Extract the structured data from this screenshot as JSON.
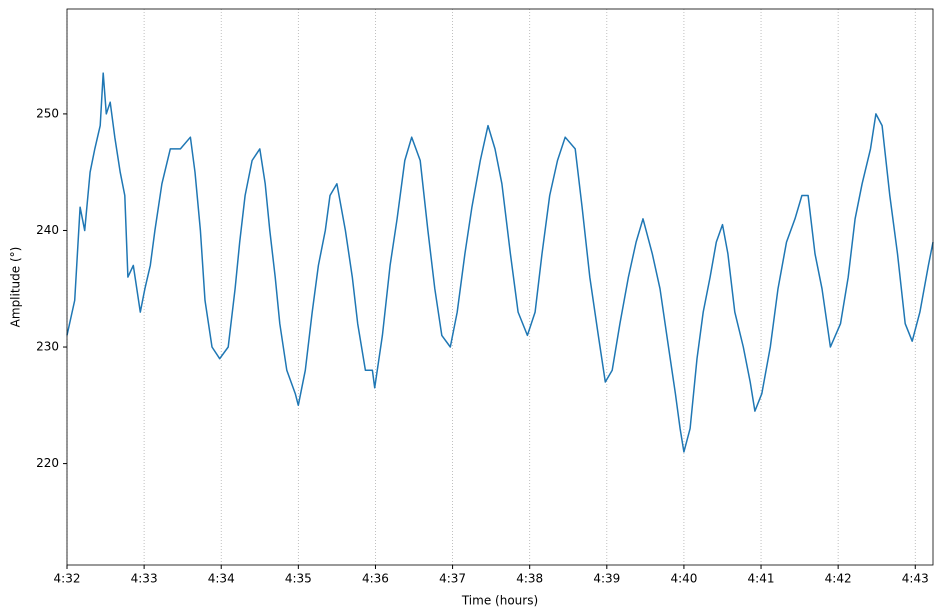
{
  "chart_data": {
    "type": "line",
    "xlabel": "Time (hours)",
    "ylabel": "Amplitude (°)",
    "xlim": [
      272.0,
      283.23
    ],
    "ylim": [
      211.3,
      259.0
    ],
    "xticks": [
      {
        "value": 272,
        "label": "4:32"
      },
      {
        "value": 273,
        "label": "4:33"
      },
      {
        "value": 274,
        "label": "4:34"
      },
      {
        "value": 275,
        "label": "4:35"
      },
      {
        "value": 276,
        "label": "4:36"
      },
      {
        "value": 277,
        "label": "4:37"
      },
      {
        "value": 278,
        "label": "4:38"
      },
      {
        "value": 279,
        "label": "4:39"
      },
      {
        "value": 280,
        "label": "4:40"
      },
      {
        "value": 281,
        "label": "4:41"
      },
      {
        "value": 282,
        "label": "4:42"
      },
      {
        "value": 283,
        "label": "4:43"
      }
    ],
    "yticks": [
      220,
      230,
      240,
      250
    ],
    "xgrid": true,
    "series": [
      {
        "color": "#1f77b4",
        "x": [
          272.0,
          272.1,
          272.17,
          272.23,
          272.3,
          272.36,
          272.43,
          272.47,
          272.51,
          272.56,
          272.62,
          272.69,
          272.75,
          272.79,
          272.86,
          272.95,
          273.01,
          273.08,
          273.14,
          273.23,
          273.34,
          273.47,
          273.6,
          273.66,
          273.73,
          273.79,
          273.88,
          273.98,
          274.09,
          274.18,
          274.24,
          274.31,
          274.4,
          274.5,
          274.57,
          274.63,
          274.7,
          274.76,
          274.85,
          274.96,
          275.0,
          275.09,
          275.18,
          275.26,
          275.35,
          275.41,
          275.5,
          275.61,
          275.7,
          275.77,
          275.87,
          275.96,
          275.99,
          276.09,
          276.19,
          276.28,
          276.38,
          276.47,
          276.58,
          276.68,
          276.77,
          276.86,
          276.97,
          277.06,
          277.16,
          277.25,
          277.36,
          277.46,
          277.55,
          277.64,
          277.75,
          277.85,
          277.97,
          278.07,
          278.16,
          278.26,
          278.36,
          278.46,
          278.59,
          278.68,
          278.78,
          278.89,
          278.98,
          279.07,
          279.17,
          279.28,
          279.38,
          279.47,
          279.59,
          279.69,
          279.8,
          279.89,
          279.95,
          280.0,
          280.08,
          280.17,
          280.25,
          280.34,
          280.42,
          280.5,
          280.57,
          280.66,
          280.77,
          280.86,
          280.92,
          281.01,
          281.12,
          281.22,
          281.33,
          281.44,
          281.53,
          281.61,
          281.7,
          281.79,
          281.9,
          282.03,
          282.13,
          282.22,
          282.31,
          282.42,
          282.49,
          282.57,
          282.67,
          282.77,
          282.87,
          282.96,
          283.06,
          283.17,
          283.23
        ],
        "values": [
          231,
          234,
          242,
          240,
          245,
          247,
          249,
          253.5,
          250,
          251,
          248,
          245,
          243,
          236,
          237,
          233,
          235,
          237,
          240,
          244,
          247,
          247,
          248,
          245,
          240,
          234,
          230,
          229,
          230,
          235,
          239,
          243,
          246,
          247,
          244,
          240,
          236,
          232,
          228,
          226,
          225,
          228,
          233,
          237,
          240,
          243,
          244,
          240,
          236,
          232,
          228,
          228,
          226.5,
          231,
          237,
          241,
          246,
          248,
          246,
          240,
          235,
          231,
          230,
          233,
          238,
          242,
          246,
          249,
          247,
          244,
          238,
          233,
          231,
          233,
          238,
          243,
          246,
          248,
          247,
          242,
          236,
          231,
          227,
          228,
          232,
          236,
          239,
          241,
          238,
          235,
          230,
          226,
          223,
          221,
          223,
          229,
          233,
          236,
          239,
          240.5,
          238,
          233,
          230,
          227,
          224.5,
          226,
          230,
          235,
          239,
          241,
          243,
          243,
          238,
          235,
          230,
          232,
          236,
          241,
          244,
          247,
          250,
          249,
          243,
          238,
          232,
          230.5,
          233,
          237,
          239
        ]
      }
    ]
  }
}
